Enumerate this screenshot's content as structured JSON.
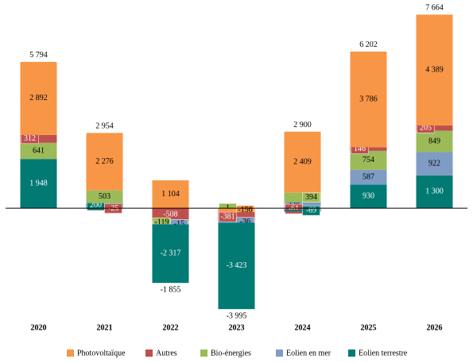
{
  "chart_data": {
    "type": "stacked_bar",
    "categories": [
      "2020",
      "2021",
      "2022",
      "2023",
      "2024",
      "2025",
      "2026"
    ],
    "series": [
      {
        "name": "Photovoltaïque",
        "color": "#f79646",
        "values": [
          2892,
          2276,
          1104,
          -156,
          2409,
          3786,
          4389
        ],
        "value_labels": [
          "2 892",
          "2 276",
          "1 104",
          "-156",
          "2 409",
          "3 786",
          "4 389"
        ]
      },
      {
        "name": "Autres",
        "color": "#c0504d",
        "values": [
          312,
          -25,
          -508,
          -381,
          -61,
          146,
          205
        ],
        "value_labels": [
          "312",
          "-25",
          "-508",
          "-381",
          "-61",
          "146",
          "205"
        ]
      },
      {
        "name": "Bio-énergies",
        "color": "#9bbb59",
        "values": [
          641,
          503,
          -119,
          1,
          394,
          754,
          849
        ],
        "value_labels": [
          "641",
          "503",
          "-119",
          "1",
          "394",
          "754",
          "849"
        ]
      },
      {
        "name": "Eolien en mer",
        "color": "#7f9cc4",
        "values": [
          null,
          null,
          -15,
          -36,
          228,
          587,
          922
        ],
        "value_labels": [
          null,
          null,
          "-15",
          "-36",
          "228",
          "587",
          "922"
        ]
      },
      {
        "name": "Eolien terrestre",
        "color": "#007a73",
        "values": [
          1948,
          200,
          -2317,
          -3423,
          -69,
          930,
          1300
        ],
        "value_labels": [
          "1 948",
          "200",
          "-2 317",
          "-3 423",
          "-69",
          "930",
          "1 300"
        ]
      }
    ],
    "totals": [
      5794,
      2954,
      -1855,
      -3995,
      2900,
      6202,
      7664
    ],
    "total_labels": [
      "5 794",
      "2 954",
      "-1 855",
      "-3 995",
      "2 900",
      "6 202",
      "7 664"
    ],
    "ylim": [
      -4180,
      7930
    ],
    "legend": "bottom"
  }
}
